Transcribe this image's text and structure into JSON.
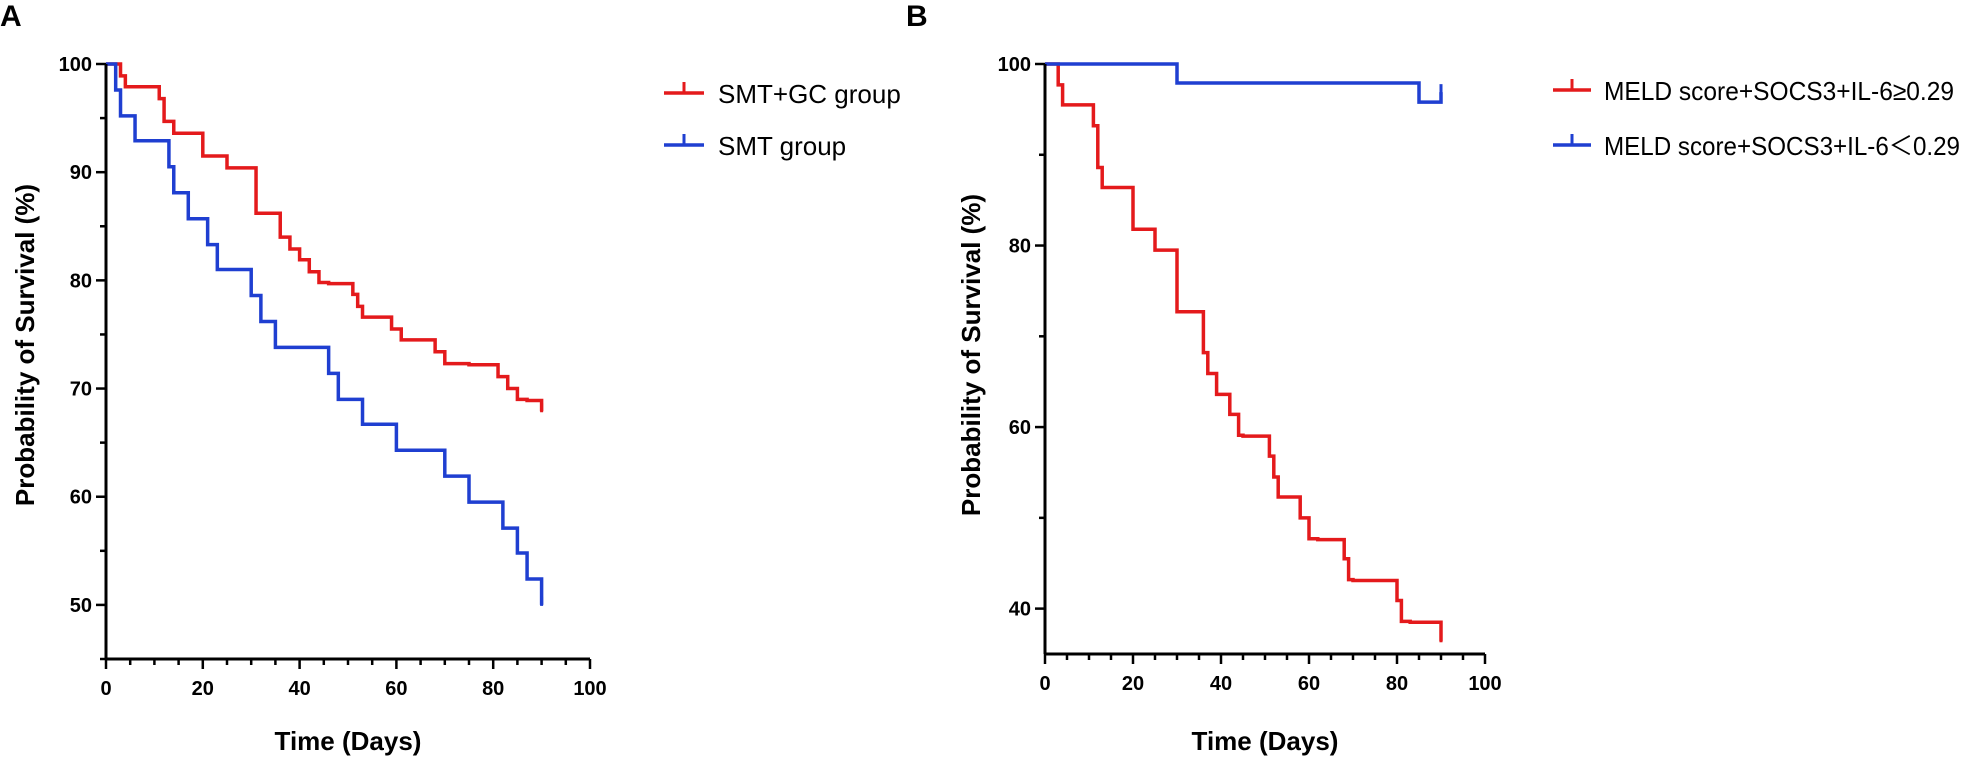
{
  "chart_data": [
    {
      "panel": "A",
      "type": "line",
      "xlabel": "Time (Days)",
      "ylabel": "Probability of Survival (%)",
      "xlim": [
        0,
        100
      ],
      "ylim": [
        45,
        100
      ],
      "xticks": [
        0,
        20,
        40,
        60,
        80,
        100
      ],
      "yticks": [
        50,
        60,
        70,
        80,
        90,
        100
      ],
      "legend_position": "top-right",
      "series": [
        {
          "name": "SMT+GC group",
          "color": "#e41a1c",
          "x": [
            0,
            3,
            4,
            11,
            12,
            14,
            20,
            25,
            31,
            36,
            38,
            40,
            42,
            44,
            46,
            51,
            52,
            53,
            59,
            61,
            68,
            70,
            75,
            81,
            83,
            85,
            87,
            90
          ],
          "y": [
            100,
            98.9,
            97.9,
            96.8,
            94.7,
            93.6,
            91.5,
            90.4,
            86.2,
            84.0,
            82.9,
            81.9,
            80.8,
            79.8,
            79.7,
            78.7,
            77.6,
            76.6,
            75.5,
            74.5,
            73.4,
            72.3,
            72.2,
            71.1,
            70.0,
            69.0,
            68.9,
            67.9
          ]
        },
        {
          "name": "SMT group",
          "color": "#1f3fd1",
          "x": [
            0,
            2,
            3,
            6,
            13,
            14,
            17,
            21,
            23,
            30,
            32,
            35,
            46,
            48,
            53,
            60,
            70,
            75,
            82,
            85,
            87,
            90
          ],
          "y": [
            100,
            97.6,
            95.2,
            92.9,
            90.5,
            88.1,
            85.7,
            83.3,
            81.0,
            78.6,
            76.2,
            73.8,
            71.4,
            69.0,
            66.7,
            64.3,
            61.9,
            59.5,
            57.1,
            54.8,
            52.4,
            50.0
          ]
        }
      ]
    },
    {
      "panel": "B",
      "type": "line",
      "xlabel": "Time (Days)",
      "ylabel": "Probability of Survival (%)",
      "xlim": [
        0,
        100
      ],
      "ylim": [
        35,
        100
      ],
      "xticks": [
        0,
        20,
        40,
        60,
        80,
        100
      ],
      "yticks": [
        40,
        60,
        80,
        100
      ],
      "legend_position": "top-right",
      "series": [
        {
          "name": "MELD score+SOCS3+IL-6≥0.29",
          "color": "#e41a1c",
          "x": [
            0,
            3,
            4,
            11,
            12,
            13,
            20,
            25,
            30,
            36,
            37,
            39,
            42,
            44,
            45,
            51,
            52,
            53,
            58,
            60,
            62,
            68,
            69,
            70,
            80,
            81,
            83,
            90
          ],
          "y": [
            100,
            97.7,
            95.5,
            93.2,
            88.6,
            86.4,
            81.8,
            79.5,
            72.7,
            68.2,
            65.9,
            63.6,
            61.4,
            59.1,
            59.0,
            56.8,
            54.5,
            52.3,
            50.0,
            47.7,
            47.6,
            45.5,
            43.2,
            43.1,
            40.9,
            38.6,
            38.5,
            36.4
          ]
        },
        {
          "name": "MELD score+SOCS3+IL-6＜0.29",
          "color": "#1f3fd1",
          "x": [
            0,
            30,
            85,
            90
          ],
          "y": [
            100,
            97.9,
            95.8,
            96.9
          ]
        }
      ]
    }
  ]
}
